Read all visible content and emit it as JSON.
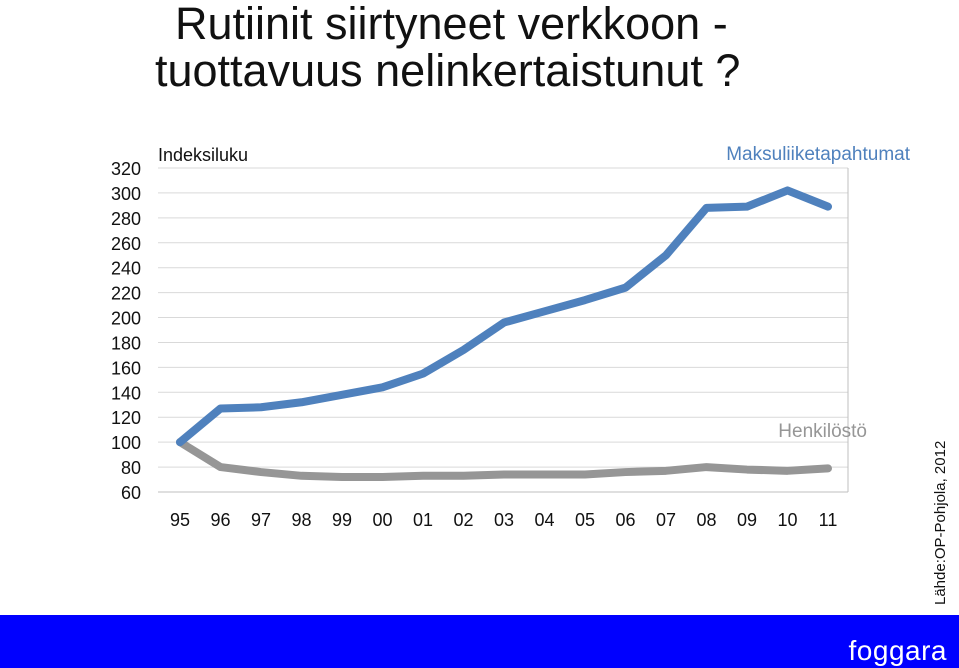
{
  "title": {
    "line1": "Rutiinit siirtyneet verkkoon -",
    "line2": "tuottavuus nelinkertaistunut ?"
  },
  "source": "Lähde:OP-Pohjola, 2012",
  "brand": "foggara",
  "chart_data": {
    "type": "line",
    "ylabel": "Indeksiluku",
    "ylim": [
      60,
      320
    ],
    "yticks": [
      "320",
      "300",
      "280",
      "260",
      "240",
      "220",
      "200",
      "180",
      "160",
      "140",
      "120",
      "100",
      "80",
      "60"
    ],
    "categories": [
      "95",
      "96",
      "97",
      "98",
      "99",
      "00",
      "01",
      "02",
      "03",
      "04",
      "05",
      "06",
      "07",
      "08",
      "09",
      "10",
      "11"
    ],
    "grid": true,
    "series": [
      {
        "name": "Maksuliiketapahtumat",
        "color": "#4f81bd",
        "values": [
          100,
          127,
          128,
          132,
          138,
          144,
          155,
          174,
          196,
          205,
          214,
          224,
          250,
          288,
          289,
          302,
          289
        ]
      },
      {
        "name": "Henkilöstö",
        "color": "#969696",
        "values": [
          100,
          80,
          76,
          73,
          72,
          72,
          73,
          73,
          74,
          74,
          74,
          76,
          77,
          80,
          78,
          77,
          79
        ]
      }
    ]
  }
}
